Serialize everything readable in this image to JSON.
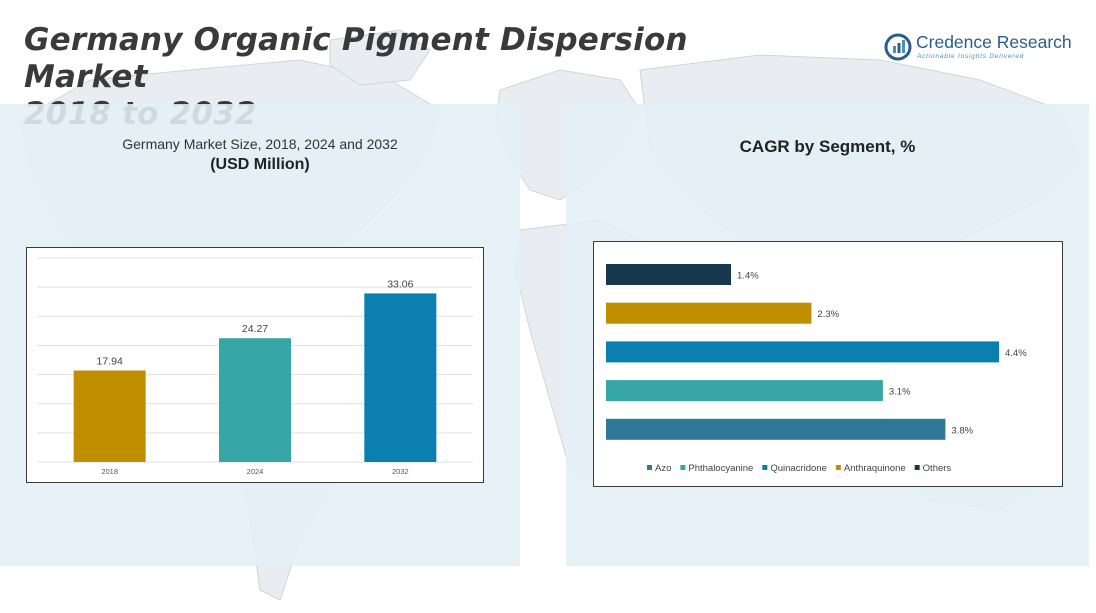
{
  "title": {
    "line1": "Germany Organic Pigment Dispersion Market",
    "line2": "2018 to 2032"
  },
  "logo": {
    "name": "Credence Research",
    "tagline": "Actionable Insights Delivered",
    "icon": "credence-research-logo-icon",
    "color": "#2b5d8c"
  },
  "left_panel": {
    "subtitle": "Germany Market Size, 2018, 2024 and 2032",
    "unit": "(USD Million)"
  },
  "right_panel": {
    "title": "CAGR by Segment, %"
  },
  "chart_data": [
    {
      "type": "bar",
      "orientation": "vertical",
      "categories": [
        "2018",
        "2024",
        "2032"
      ],
      "values": [
        17.94,
        24.27,
        33.06
      ],
      "labels": [
        "17.94",
        "24.27",
        "33.06"
      ],
      "colors": [
        "#bf8f00",
        "#36a6a6",
        "#0a7fb0"
      ],
      "ylim": [
        0,
        40
      ],
      "grid": true,
      "title": "Germany Market Size, 2018, 2024 and 2032",
      "ylabel": "(USD Million)",
      "xlabel": ""
    },
    {
      "type": "bar",
      "orientation": "horizontal",
      "categories": [
        "Others",
        "Anthraquinone",
        "Quinacridone",
        "Phthalocyanine",
        "Azo"
      ],
      "values": [
        1.4,
        2.3,
        4.4,
        3.1,
        3.8
      ],
      "labels": [
        "1.4%",
        "2.3%",
        "4.4%",
        "3.1%",
        "3.8%"
      ],
      "colors": [
        "#17394e",
        "#bf8f00",
        "#0a7fb0",
        "#36a6a6",
        "#2f7897"
      ],
      "xlim": [
        0,
        4.4
      ],
      "grid": false,
      "legend": {
        "placement": "bottom",
        "entries": [
          "Azo",
          "Phthalocyanine",
          "Quinacridone",
          "Anthraquinone",
          "Others"
        ],
        "colors": [
          "#2f7897",
          "#36a6a6",
          "#0a7fb0",
          "#bf8f00",
          "#17394e"
        ]
      },
      "title": "CAGR by Segment, %"
    }
  ]
}
